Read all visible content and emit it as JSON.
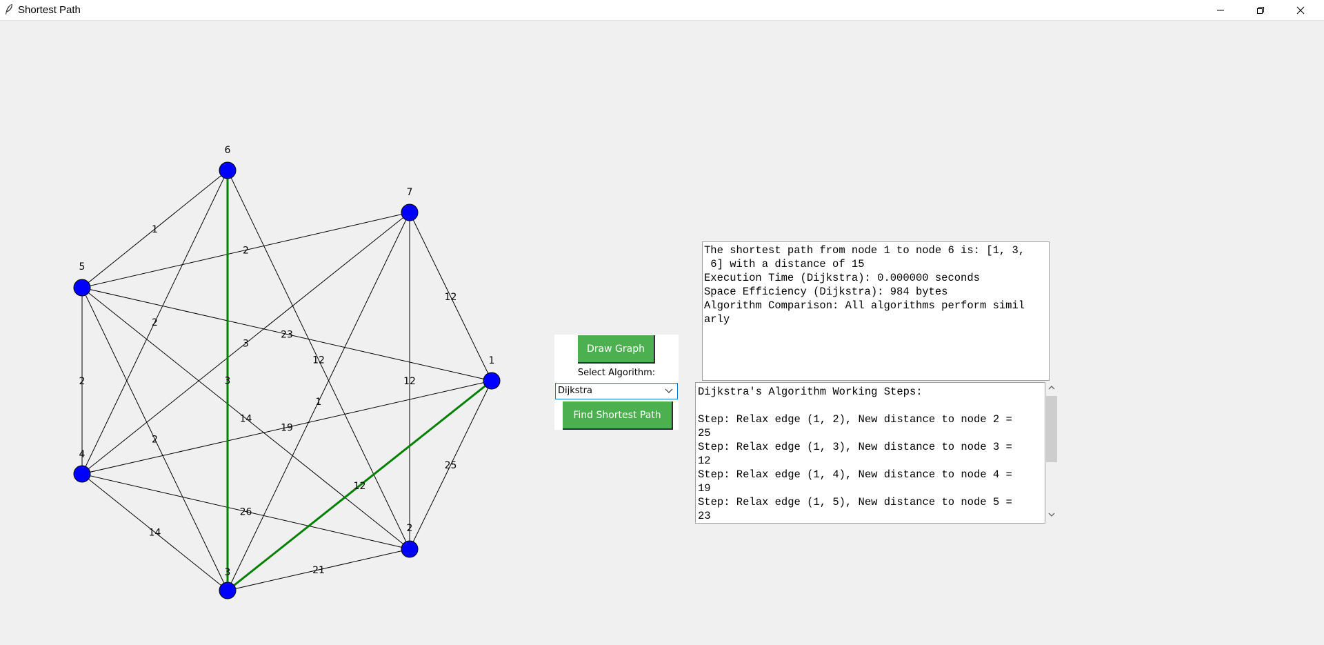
{
  "window": {
    "title": "Shortest Path",
    "app_icon": "feather-icon",
    "controls": [
      "minimize-icon",
      "restore-icon",
      "close-icon"
    ]
  },
  "graph": {
    "node_color": "#0000ff",
    "edge_color": "#000000",
    "path_color": "#008000",
    "nodes": [
      {
        "id": "1",
        "label": "1"
      },
      {
        "id": "2",
        "label": "2"
      },
      {
        "id": "3",
        "label": "3"
      },
      {
        "id": "4",
        "label": "4"
      },
      {
        "id": "5",
        "label": "5"
      },
      {
        "id": "6",
        "label": "6"
      },
      {
        "id": "7",
        "label": "7"
      }
    ],
    "edges": [
      {
        "from": "5",
        "to": "6",
        "weight": "1"
      },
      {
        "from": "5",
        "to": "7",
        "weight": "2"
      },
      {
        "from": "5",
        "to": "1",
        "weight": "23"
      },
      {
        "from": "5",
        "to": "4",
        "weight": "2"
      },
      {
        "from": "5",
        "to": "2",
        "weight": "14"
      },
      {
        "from": "5",
        "to": "3",
        "weight": "2"
      },
      {
        "from": "6",
        "to": "4",
        "weight": "2"
      },
      {
        "from": "6",
        "to": "3",
        "weight": "3",
        "highlight": true
      },
      {
        "from": "6",
        "to": "2",
        "weight": "12"
      },
      {
        "from": "7",
        "to": "1",
        "weight": "12"
      },
      {
        "from": "7",
        "to": "2",
        "weight": "12"
      },
      {
        "from": "7",
        "to": "4",
        "weight": "3"
      },
      {
        "from": "7",
        "to": "3",
        "weight": "1"
      },
      {
        "from": "1",
        "to": "4",
        "weight": "19"
      },
      {
        "from": "1",
        "to": "2",
        "weight": "25"
      },
      {
        "from": "1",
        "to": "3",
        "weight": "12",
        "highlight": true
      },
      {
        "from": "4",
        "to": "2",
        "weight": "26"
      },
      {
        "from": "4",
        "to": "3",
        "weight": "14"
      },
      {
        "from": "2",
        "to": "3",
        "weight": "21"
      }
    ]
  },
  "controls": {
    "draw_graph_label": "Draw Graph",
    "select_algorithm_label": "Select Algorithm:",
    "algorithm_selected": "Dijkstra",
    "find_path_label": "Find Shortest Path",
    "button_color": "#4caf50"
  },
  "result": {
    "text": "The shortest path from node 1 to node 6 is: [1, 3,\n 6] with a distance of 15\nExecution Time (Dijkstra): 0.000000 seconds\nSpace Efficiency (Dijkstra): 984 bytes\nAlgorithm Comparison: All algorithms perform simil\narly"
  },
  "steps": {
    "text": "Dijkstra's Algorithm Working Steps:\n\nStep: Relax edge (1, 2), New distance to node 2 =\n25\nStep: Relax edge (1, 3), New distance to node 3 =\n12\nStep: Relax edge (1, 4), New distance to node 4 =\n19\nStep: Relax edge (1, 5), New distance to node 5 =\n23"
  }
}
